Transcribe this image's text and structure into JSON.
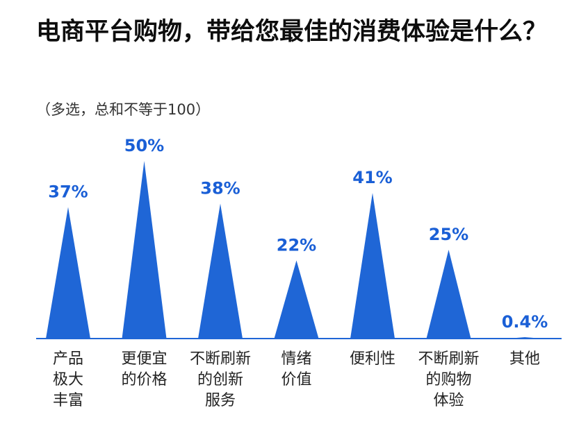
{
  "title": "电商平台购物，带给您最佳的消费体验是什么？",
  "subtitle": "（多选，总和不等于100）",
  "chart_data": {
    "type": "bar",
    "shape": "triangle",
    "title": "电商平台购物，带给您最佳的消费体验是什么？",
    "subtitle": "（多选，总和不等于100）",
    "categories": [
      [
        "产品",
        "极大",
        "丰富"
      ],
      [
        "更便宜",
        "的价格"
      ],
      [
        "不断刷新",
        "的创新",
        "服务"
      ],
      [
        "情绪",
        "价值"
      ],
      [
        "便利性"
      ],
      [
        "不断刷新",
        "的购物",
        "体验"
      ],
      [
        "其他"
      ]
    ],
    "values": [
      37,
      50,
      38,
      22,
      41,
      25,
      0.4
    ],
    "value_labels": [
      "37%",
      "50%",
      "38%",
      "22%",
      "41%",
      "25%",
      "0.4%"
    ],
    "unit": "%",
    "ylim": [
      0,
      50
    ],
    "grid": false,
    "legend": "none",
    "colors": {
      "bar": "#1f66d6",
      "value_label": "#1a5fd6",
      "axis": "#1f66d6"
    }
  }
}
